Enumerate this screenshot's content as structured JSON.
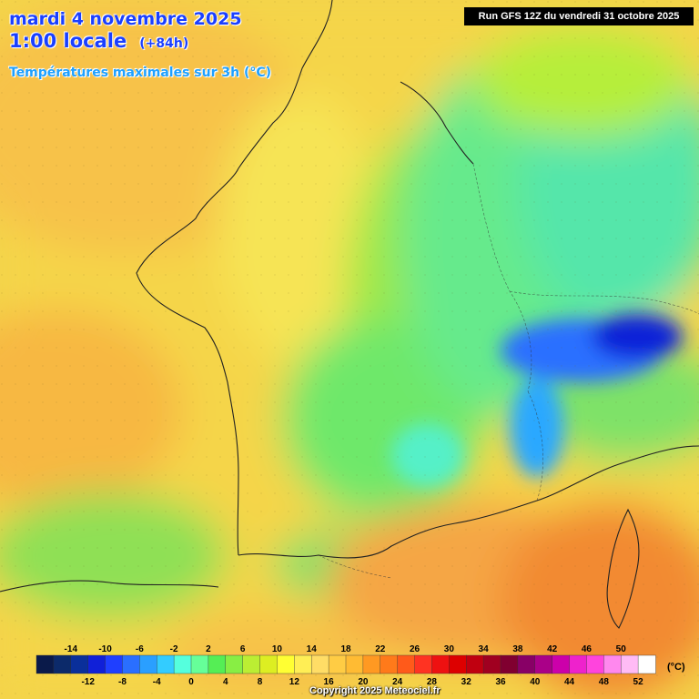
{
  "header": {
    "date": "mardi 4 novembre 2025",
    "time": "1:00 locale",
    "lead": "(+84h)",
    "variable": "Températures maximales sur 3h (°C)"
  },
  "run_info": "Run GFS 12Z du vendredi 31 octobre 2025",
  "copyright": "Copyright 2025 Meteociel.fr",
  "legend": {
    "unit": "(°C)",
    "top_labels": [
      "-14",
      "-10",
      "-6",
      "-2",
      "2",
      "6",
      "10",
      "14",
      "18",
      "22",
      "26",
      "30",
      "34",
      "38",
      "42",
      "46",
      "50"
    ],
    "bottom_labels": [
      "-12",
      "-8",
      "-4",
      "0",
      "4",
      "8",
      "12",
      "16",
      "20",
      "24",
      "28",
      "32",
      "36",
      "40",
      "44",
      "48",
      "52"
    ],
    "colors": [
      "#0a1a4a",
      "#0c2a6a",
      "#0a2f9a",
      "#1020d8",
      "#1f3fff",
      "#2a6fff",
      "#2a9fff",
      "#33ccff",
      "#55ffdd",
      "#66ff99",
      "#55ee55",
      "#88ee44",
      "#bbee33",
      "#ddee22",
      "#ffff33",
      "#ffee55",
      "#ffdd66",
      "#ffcc44",
      "#ffbb33",
      "#ff9922",
      "#ff7a1a",
      "#ff5a1a",
      "#ff3322",
      "#ee1111",
      "#dd0000",
      "#c00010",
      "#a00020",
      "#800030",
      "#880066",
      "#aa0088",
      "#cc00aa",
      "#ee22cc",
      "#ff44dd",
      "#ff88ee",
      "#ffbbf5",
      "#ffffff"
    ]
  }
}
